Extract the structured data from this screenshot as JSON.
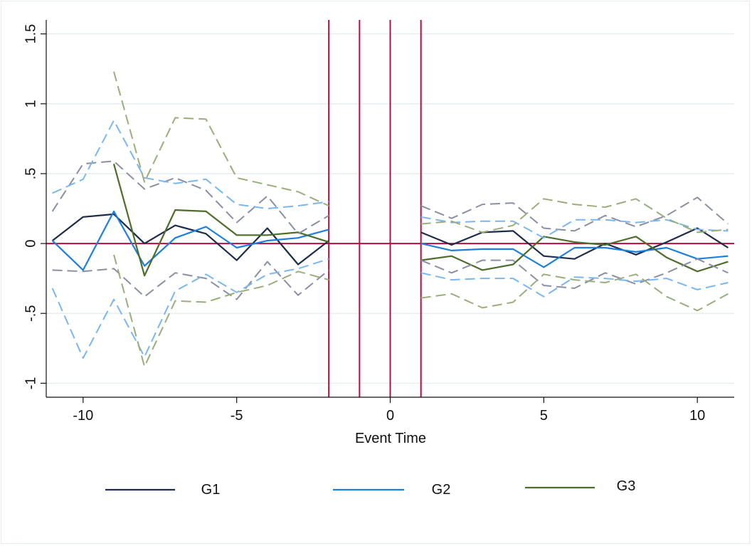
{
  "chart_data": {
    "type": "line",
    "title": "",
    "xlabel": "Event Time",
    "ylabel": "",
    "xlim": [
      -11.2,
      11.2
    ],
    "ylim": [
      -1.1,
      1.6
    ],
    "x_ticks": [
      -10,
      -5,
      0,
      5,
      10
    ],
    "x_tick_labels": [
      "-10",
      "-5",
      "0",
      "5",
      "10"
    ],
    "y_ticks": [
      -1,
      -0.5,
      0,
      0.5,
      1,
      1.5
    ],
    "y_tick_labels": [
      "-1",
      "-.5",
      "0",
      ".5",
      "1",
      "1.5"
    ],
    "grid": true,
    "legend_position": "bottom",
    "reference_lines": {
      "horizontal": [
        0
      ],
      "vertical": [
        -2,
        -1,
        0,
        1
      ],
      "color": "#b2113f"
    },
    "series": [
      {
        "name": "G1",
        "color": "#1c2c4a",
        "style": "solid",
        "x": [
          -11,
          -10,
          -9,
          -8,
          -7,
          -6,
          -5,
          -4,
          -3,
          -2,
          1,
          2,
          3,
          4,
          5,
          6,
          7,
          8,
          9,
          10,
          11
        ],
        "values": [
          0.02,
          0.19,
          0.21,
          0.0,
          0.13,
          0.07,
          -0.12,
          0.11,
          -0.15,
          0.02,
          0.08,
          -0.01,
          0.08,
          0.09,
          -0.09,
          -0.11,
          0.0,
          -0.08,
          0.01,
          0.11,
          -0.03
        ]
      },
      {
        "name": "G2",
        "color": "#1c7fe0",
        "style": "solid",
        "x": [
          -11,
          -10,
          -9,
          -8,
          -7,
          -6,
          -5,
          -4,
          -3,
          -2,
          1,
          2,
          3,
          4,
          5,
          6,
          7,
          8,
          9,
          10,
          11
        ],
        "values": [
          0.02,
          -0.19,
          0.23,
          -0.16,
          0.04,
          0.12,
          -0.03,
          0.02,
          0.04,
          0.1,
          0.0,
          -0.05,
          -0.04,
          -0.04,
          -0.17,
          -0.03,
          -0.03,
          -0.06,
          -0.03,
          -0.11,
          -0.09
        ]
      },
      {
        "name": "G3",
        "color": "#4d6d2a",
        "style": "solid",
        "x": [
          -9,
          -8,
          -7,
          -6,
          -5,
          -4,
          -3,
          -2,
          1,
          2,
          3,
          4,
          5,
          6,
          7,
          8,
          9,
          10,
          11
        ],
        "values": [
          0.57,
          -0.23,
          0.24,
          0.23,
          0.06,
          0.06,
          0.08,
          0.01,
          -0.12,
          -0.09,
          -0.19,
          -0.15,
          0.05,
          0.01,
          -0.01,
          0.05,
          -0.1,
          -0.2,
          -0.13
        ]
      },
      {
        "color": "#8a8fa3",
        "style": "dashed",
        "x": [
          -11,
          -10,
          -9,
          -8,
          -7,
          -6,
          -5,
          -4,
          -3,
          -2,
          1,
          2,
          3,
          4,
          5,
          6,
          7,
          8,
          9,
          10,
          11
        ],
        "values": [
          0.23,
          0.57,
          0.59,
          0.39,
          0.47,
          0.38,
          0.15,
          0.34,
          0.07,
          0.2,
          0.27,
          0.18,
          0.28,
          0.29,
          0.11,
          0.09,
          0.2,
          0.12,
          0.2,
          0.33,
          0.14
        ]
      },
      {
        "color": "#8a8fa3",
        "style": "dashed",
        "x": [
          -11,
          -10,
          -9,
          -8,
          -7,
          -6,
          -5,
          -4,
          -3,
          -2,
          1,
          2,
          3,
          4,
          5,
          6,
          7,
          8,
          9,
          10,
          11
        ],
        "values": [
          -0.19,
          -0.2,
          -0.18,
          -0.38,
          -0.21,
          -0.25,
          -0.4,
          -0.13,
          -0.37,
          -0.19,
          -0.12,
          -0.21,
          -0.12,
          -0.12,
          -0.3,
          -0.32,
          -0.21,
          -0.29,
          -0.21,
          -0.11,
          -0.21
        ]
      },
      {
        "color": "#7ab6f0",
        "style": "dashed",
        "x": [
          -11,
          -10,
          -9,
          -8,
          -7,
          -6,
          -5,
          -4,
          -3,
          -2,
          1,
          2,
          3,
          4,
          5,
          6,
          7,
          8,
          9,
          10,
          11
        ],
        "values": [
          0.36,
          0.46,
          0.88,
          0.47,
          0.43,
          0.46,
          0.28,
          0.25,
          0.27,
          0.3,
          0.19,
          0.15,
          0.16,
          0.16,
          0.04,
          0.17,
          0.17,
          0.15,
          0.17,
          0.1,
          0.09
        ]
      },
      {
        "color": "#7ab6f0",
        "style": "dashed",
        "x": [
          -11,
          -10,
          -9,
          -8,
          -7,
          -6,
          -5,
          -4,
          -3,
          -2,
          1,
          2,
          3,
          4,
          5,
          6,
          7,
          8,
          9,
          10,
          11
        ],
        "values": [
          -0.32,
          -0.82,
          -0.4,
          -0.81,
          -0.34,
          -0.22,
          -0.35,
          -0.22,
          -0.18,
          -0.11,
          -0.21,
          -0.26,
          -0.25,
          -0.25,
          -0.38,
          -0.24,
          -0.25,
          -0.27,
          -0.25,
          -0.33,
          -0.28
        ]
      },
      {
        "color": "#9aae7c",
        "style": "dashed",
        "x": [
          -9,
          -8,
          -7,
          -6,
          -5,
          -4,
          -3,
          -2,
          1,
          2,
          3,
          4,
          5,
          6,
          7,
          8,
          9,
          10,
          11
        ],
        "values": [
          1.23,
          0.44,
          0.9,
          0.89,
          0.47,
          0.42,
          0.37,
          0.27,
          0.14,
          0.16,
          0.08,
          0.13,
          0.32,
          0.28,
          0.26,
          0.32,
          0.18,
          0.08,
          0.1
        ]
      },
      {
        "color": "#9aae7c",
        "style": "dashed",
        "x": [
          -9,
          -8,
          -7,
          -6,
          -5,
          -4,
          -3,
          -2,
          1,
          2,
          3,
          4,
          5,
          6,
          7,
          8,
          9,
          10,
          11
        ],
        "values": [
          -0.08,
          -0.88,
          -0.41,
          -0.42,
          -0.35,
          -0.3,
          -0.2,
          -0.26,
          -0.39,
          -0.36,
          -0.46,
          -0.42,
          -0.22,
          -0.26,
          -0.28,
          -0.22,
          -0.38,
          -0.48,
          -0.36
        ]
      }
    ],
    "legend": [
      {
        "label": "G1",
        "color": "#1c2c4a"
      },
      {
        "label": "G2",
        "color": "#1c7fe0"
      },
      {
        "label": "G3",
        "color": "#4d6d2a"
      }
    ]
  }
}
